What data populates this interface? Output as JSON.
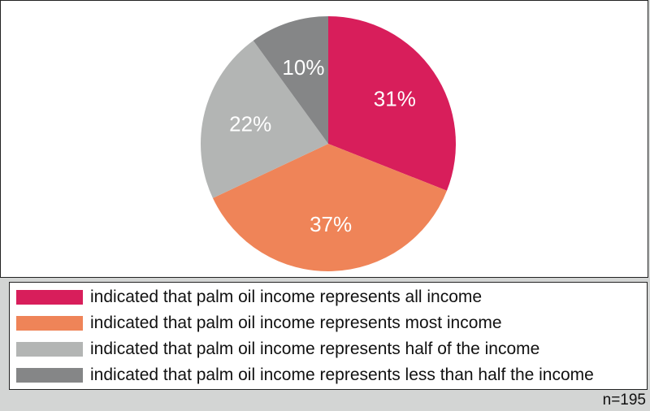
{
  "chart_data": {
    "type": "pie",
    "categories": [
      "indicated that palm oil income represents all income",
      "indicated that palm oil income represents most income",
      "indicated that palm oil income represents half of the income",
      "indicated that palm oil income represents less than half the income"
    ],
    "values": [
      31,
      37,
      22,
      10
    ],
    "value_labels": [
      "31%",
      "37%",
      "22%",
      "10%"
    ],
    "colors": [
      "#d81e5b",
      "#ef8458",
      "#b3b5b4",
      "#858687"
    ],
    "legend_placement": "bottom",
    "note": "n=195"
  }
}
